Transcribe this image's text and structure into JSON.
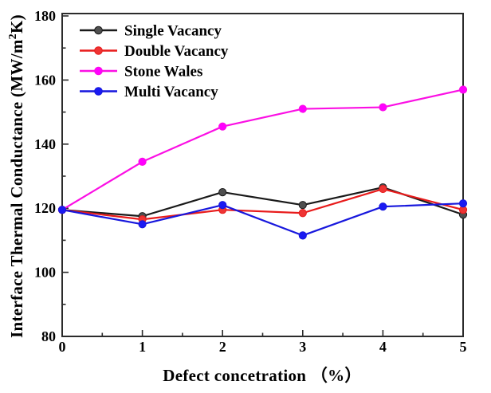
{
  "chart_data": {
    "type": "line",
    "title": "",
    "xlabel": "Defect concetration （%）",
    "ylabel": "Interface Thermal Conductance (MW/m²K)",
    "xlim": [
      0,
      5
    ],
    "ylim": [
      80,
      180
    ],
    "x_major_ticks": [
      0,
      1,
      2,
      3,
      4,
      5
    ],
    "y_major_ticks": [
      80,
      100,
      120,
      140,
      160,
      180
    ],
    "x_minor_step": 0.5,
    "y_minor_step": 10,
    "grid": false,
    "legend_position": "top-left",
    "x": [
      0,
      1,
      2,
      3,
      4,
      5
    ],
    "series": [
      {
        "name": "Single Vacancy",
        "line_color": "#1a1a1a",
        "marker_color": "#4f4f4f",
        "values": [
          119.5,
          117.5,
          125,
          121,
          126.5,
          118
        ]
      },
      {
        "name": "Double Vacancy",
        "line_color": "#e81b1b",
        "marker_color": "#ee3434",
        "values": [
          119.5,
          116.5,
          119.5,
          118.5,
          126,
          119.5
        ]
      },
      {
        "name": "Stone Wales",
        "line_color": "#fb0fe4",
        "marker_color": "#ff00ff",
        "values": [
          119.5,
          134.5,
          145.5,
          151,
          151.5,
          157
        ]
      },
      {
        "name": "Multi Vacancy",
        "line_color": "#1717dd",
        "marker_color": "#1a1af2",
        "values": [
          119.5,
          115,
          121,
          111.5,
          120.5,
          121.5
        ]
      }
    ],
    "axis_color": "#2b2b2b"
  }
}
